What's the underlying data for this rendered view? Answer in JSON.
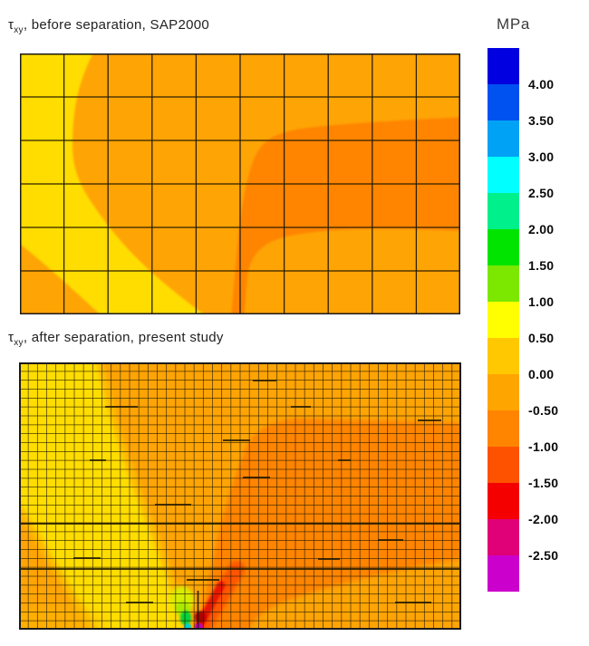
{
  "figure": {
    "plot1_title": {
      "symbol": "τ",
      "subscript": "xy",
      "rest": ", before separation, SAP2000"
    },
    "plot2_title": {
      "symbol": "τ",
      "subscript": "xy",
      "rest": ", after separation, present study"
    }
  },
  "legend": {
    "title": "MPa",
    "tick_labels": [
      "4.00",
      "3.50",
      "3.00",
      "2.50",
      "2.00",
      "1.50",
      "1.00",
      "0.50",
      "0.00",
      "-0.50",
      "-1.00",
      "-1.50",
      "-2.00",
      "-2.50"
    ],
    "band_colors_top_to_bottom": [
      "#0000E0",
      "#0052F0",
      "#00A2F5",
      "#00FFFF",
      "#00F08C",
      "#00E400",
      "#7CE800",
      "#FFFF00",
      "#FFC800",
      "#FFA500",
      "#FF8400",
      "#FF5200",
      "#F50000",
      "#E00078",
      "#CC00CC"
    ]
  },
  "fill_colors": {
    "yellow": "#FFDD00",
    "gold_edge": "#FFBC00",
    "orange": "#FFA405",
    "dark_orange": "#FF8405",
    "orange_red": "#FF5500",
    "red": "#E81400",
    "dark_red": "#B40000",
    "magenta": "#C400BE",
    "yellow_green": "#D8EE00",
    "chartreuse": "#AAEA00",
    "green": "#00D23C",
    "cyan": "#00CFCF",
    "mesh_line": "#221a00",
    "border": "#1a1a1a"
  },
  "chart_data": [
    {
      "type": "heatmap",
      "subtype": "filled-contour-on-FE-mesh",
      "title": "τxy, before separation, SAP2000",
      "units": "MPa",
      "mesh": {
        "columns": 10,
        "rows": 6
      },
      "band_step": 0.5,
      "regions": [
        {
          "band_MPa": "0.00 to 0.50",
          "color_name": "yellow-gold",
          "location": "left edge columns and diagonal band running from top-left down to bottom-center (~20-45% width at bottom)"
        },
        {
          "band_MPa": "-0.50 to 0.00",
          "color_name": "orange",
          "location": "background over most of the panel"
        },
        {
          "band_MPa": "-1.00 to -0.50",
          "color_name": "dark orange",
          "location": "large rounded blob on right half, from ~25% to ~70% of height, touching right edge, with a narrow finger descending to bottom edge near 48% width"
        }
      ]
    },
    {
      "type": "heatmap",
      "subtype": "filled-contour-on-FE-mesh",
      "title": "τxy, after separation, present study",
      "units": "MPa",
      "mesh": {
        "columns": 48,
        "rows": 30
      },
      "band_step": 0.5,
      "regions": [
        {
          "band_MPa": "0.00 to 0.50",
          "color_name": "yellow-gold",
          "location": "wedge from top-left corner tapering diagonally down to crack tip at bottom (~38% width)"
        },
        {
          "band_MPa": "-0.50 to 0.00",
          "color_name": "orange",
          "location": "background"
        },
        {
          "band_MPa": "-1.00 to -0.50",
          "color_name": "dark orange",
          "location": "large blob on right half from ~22% to ~73% height touching right edge, tapering down-left to crack tip"
        },
        {
          "band_MPa": "1.00 to 2.00",
          "color_name": "chartreuse/green",
          "location": "stress concentration immediately left of crack tip at bottom edge"
        },
        {
          "band_MPa": "2.50 to 3.00",
          "color_name": "cyan",
          "location": "single spot at bottom edge left of crack tip"
        },
        {
          "band_MPa": "-2.00 to -1.50",
          "color_name": "red",
          "location": "short streak rising up-right from crack tip"
        },
        {
          "band_MPa": "below -2.50",
          "color_name": "magenta",
          "location": "single spot at bottom edge right of crack tip"
        }
      ]
    },
    {
      "type": "colorbar",
      "title": "MPa",
      "tick_values": [
        4.0,
        3.5,
        3.0,
        2.5,
        2.0,
        1.5,
        1.0,
        0.5,
        0.0,
        -0.5,
        -1.0,
        -1.5,
        -2.0,
        -2.5
      ],
      "n_bands": 15,
      "orientation": "vertical",
      "position": "right"
    }
  ]
}
